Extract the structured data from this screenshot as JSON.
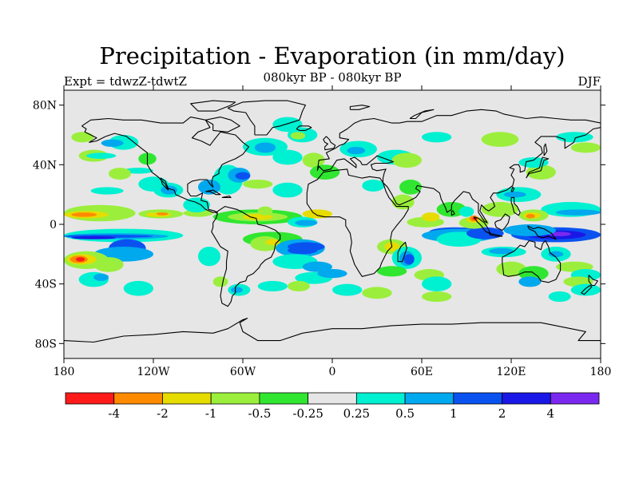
{
  "title": "Precipitation - Evaporation (in mm/day)",
  "subtitle": "080kyr BP - 080kyr BP",
  "left_label": "Expt = tdwzZ-tdwtZ",
  "right_label": "DJF",
  "map": {
    "lon_range": [
      -180,
      180
    ],
    "lat_range": [
      -90,
      90
    ],
    "x_ticks": [
      {
        "lon": -180,
        "label": "180"
      },
      {
        "lon": -120,
        "label": "120W"
      },
      {
        "lon": -60,
        "label": "60W"
      },
      {
        "lon": 0,
        "label": "0"
      },
      {
        "lon": 60,
        "label": "60E"
      },
      {
        "lon": 120,
        "label": "120E"
      },
      {
        "lon": 180,
        "label": "180"
      }
    ],
    "y_ticks": [
      {
        "lat": 80,
        "label": "80N"
      },
      {
        "lat": 40,
        "label": "40N"
      },
      {
        "lat": 0,
        "label": "0"
      },
      {
        "lat": -40,
        "label": "40S"
      },
      {
        "lat": -80,
        "label": "80S"
      }
    ],
    "background_color": "#e6e6e6"
  },
  "colorbar": {
    "colors": [
      "#ff1a1a",
      "#ff8a00",
      "#e6dc00",
      "#9bef3c",
      "#30e630",
      "#e6e6e6",
      "#00f0d2",
      "#00a8ee",
      "#0a52f0",
      "#1a18e6",
      "#7a28f0"
    ],
    "labels": [
      "-4",
      "-2",
      "-1",
      "-0.5",
      "-0.25",
      "0.25",
      "0.5",
      "1",
      "2",
      "4"
    ]
  },
  "colors": {
    "red": "#ff1a1a",
    "orange": "#ff8a00",
    "yellow": "#e6dc00",
    "lime": "#9bef3c",
    "green": "#30e630",
    "cyan": "#00f0d2",
    "lightblue": "#00a8ee",
    "blue": "#0a52f0",
    "darkblue": "#1a18e6",
    "purple": "#7a28f0"
  }
}
